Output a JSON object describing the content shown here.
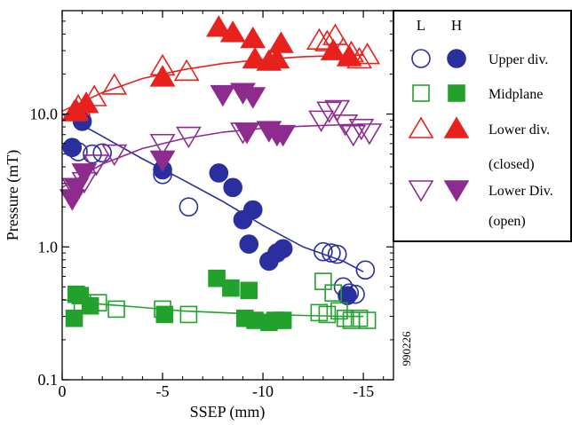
{
  "chart_data": {
    "type": "scatter",
    "xlabel": "SSEP (mm)",
    "ylabel": "Pressure (mT)",
    "xlim": [
      0,
      -16.5
    ],
    "ylim": [
      0.1,
      60
    ],
    "y_scale": "log",
    "x_ticks": [
      0,
      -5,
      -10,
      -15
    ],
    "x_tick_labels": [
      "0",
      "-5",
      "-10",
      "-15"
    ],
    "y_ticks": [
      0.1,
      1.0,
      10.0
    ],
    "y_tick_labels": [
      "0.1",
      "1.0",
      "10.0"
    ],
    "grid": false,
    "legend_position": "top-right",
    "figure_id": "990226",
    "legend": {
      "col_low": "L",
      "col_high": "H",
      "entries": [
        {
          "label": "Upper div.",
          "sublabel": ""
        },
        {
          "label": "Midplane",
          "sublabel": ""
        },
        {
          "label": "Lower div.",
          "sublabel": "(closed)"
        },
        {
          "label": "Lower Div.",
          "sublabel": "(open)"
        }
      ]
    },
    "series": [
      {
        "marker": "circle",
        "color": "#2a2fa0",
        "L": [
          [
            -0.8,
            5.2
          ],
          [
            -1.5,
            5.0
          ],
          [
            -2.0,
            5.1
          ],
          [
            -5.0,
            3.5
          ],
          [
            -6.3,
            2.0
          ],
          [
            -13.0,
            0.92
          ],
          [
            -13.4,
            0.9
          ],
          [
            -13.7,
            0.88
          ],
          [
            -14.0,
            0.5
          ],
          [
            -14.3,
            0.45
          ],
          [
            -14.6,
            0.44
          ],
          [
            -15.1,
            0.67
          ]
        ],
        "H": [
          [
            -0.5,
            5.6
          ],
          [
            -1.0,
            8.8
          ],
          [
            -5.0,
            3.8
          ],
          [
            -7.8,
            3.6
          ],
          [
            -8.5,
            2.8
          ],
          [
            -9.0,
            1.6
          ],
          [
            -9.5,
            1.9
          ],
          [
            -9.3,
            1.05
          ],
          [
            -10.3,
            0.78
          ],
          [
            -10.7,
            0.9
          ],
          [
            -11.0,
            0.97
          ],
          [
            -14.2,
            0.43
          ]
        ],
        "fit": [
          [
            0,
            10
          ],
          [
            -2,
            6.8
          ],
          [
            -4,
            4.6
          ],
          [
            -6,
            3.2
          ],
          [
            -8,
            2.2
          ],
          [
            -10,
            1.45
          ],
          [
            -12,
            1.0
          ],
          [
            -14,
            0.78
          ],
          [
            -15,
            0.65
          ]
        ]
      },
      {
        "marker": "square",
        "color": "#22a12c",
        "L": [
          [
            -1.0,
            0.38
          ],
          [
            -1.8,
            0.38
          ],
          [
            -2.7,
            0.34
          ],
          [
            -5.0,
            0.34
          ],
          [
            -6.3,
            0.31
          ],
          [
            -12.8,
            0.32
          ],
          [
            -13.0,
            0.55
          ],
          [
            -13.2,
            0.31
          ],
          [
            -13.5,
            0.45
          ],
          [
            -13.8,
            0.33
          ],
          [
            -14.1,
            0.29
          ],
          [
            -14.4,
            0.28
          ],
          [
            -14.8,
            0.29
          ],
          [
            -15.2,
            0.28
          ]
        ],
        "H": [
          [
            -0.6,
            0.29
          ],
          [
            -0.7,
            0.44
          ],
          [
            -0.9,
            0.43
          ],
          [
            -1.4,
            0.36
          ],
          [
            -5.1,
            0.31
          ],
          [
            -7.7,
            0.58
          ],
          [
            -8.4,
            0.49
          ],
          [
            -9.1,
            0.29
          ],
          [
            -9.3,
            0.47
          ],
          [
            -9.6,
            0.28
          ],
          [
            -10.3,
            0.27
          ],
          [
            -10.6,
            0.28
          ],
          [
            -11.0,
            0.28
          ]
        ],
        "fit": [
          [
            0,
            0.4
          ],
          [
            -2,
            0.37
          ],
          [
            -4,
            0.35
          ],
          [
            -6,
            0.33
          ],
          [
            -8,
            0.32
          ],
          [
            -10,
            0.31
          ],
          [
            -12,
            0.305
          ],
          [
            -14,
            0.3
          ],
          [
            -15,
            0.3
          ]
        ]
      },
      {
        "marker": "triangle-up",
        "color": "#e8211d",
        "L": [
          [
            -0.6,
            10.4
          ],
          [
            -0.8,
            11.5
          ],
          [
            -1.6,
            13.5
          ],
          [
            -2.6,
            16.5
          ],
          [
            -5.0,
            23.0
          ],
          [
            -6.2,
            21.0
          ],
          [
            -12.8,
            36.0
          ],
          [
            -13.2,
            35.0
          ],
          [
            -13.6,
            39.0
          ],
          [
            -14.0,
            31.0
          ],
          [
            -14.4,
            29.0
          ],
          [
            -14.8,
            26.0
          ],
          [
            -15.2,
            28.0
          ]
        ],
        "H": [
          [
            -0.7,
            10.6
          ],
          [
            -1.2,
            12.0
          ],
          [
            -5.0,
            19.0
          ],
          [
            -7.8,
            45.0
          ],
          [
            -8.5,
            41.0
          ],
          [
            -9.5,
            37.0
          ],
          [
            -9.6,
            26.0
          ],
          [
            -10.3,
            25.0
          ],
          [
            -10.7,
            26.0
          ],
          [
            -10.9,
            34.0
          ],
          [
            -13.5,
            30.0
          ],
          [
            -14.3,
            27.0
          ]
        ],
        "fit": [
          [
            0,
            10.5
          ],
          [
            -2,
            14.5
          ],
          [
            -4,
            18.5
          ],
          [
            -6,
            21.5
          ],
          [
            -8,
            24.0
          ],
          [
            -10,
            25.8
          ],
          [
            -12,
            27.0
          ],
          [
            -14,
            27.6
          ],
          [
            -15,
            27.8
          ]
        ]
      },
      {
        "marker": "triangle-down",
        "color": "#8e2b8e",
        "L": [
          [
            -0.6,
            2.8
          ],
          [
            -1.1,
            3.1
          ],
          [
            -1.7,
            4.2
          ],
          [
            -2.6,
            5.0
          ],
          [
            -5.0,
            6.0
          ],
          [
            -6.3,
            6.8
          ],
          [
            -9.0,
            7.3
          ],
          [
            -12.9,
            9.0
          ],
          [
            -13.3,
            10.5
          ],
          [
            -13.7,
            10.8
          ],
          [
            -14.1,
            8.4
          ],
          [
            -14.5,
            7.0
          ],
          [
            -14.9,
            7.8
          ],
          [
            -15.3,
            7.2
          ]
        ],
        "H": [
          [
            -0.5,
            2.3
          ],
          [
            -0.7,
            2.8
          ],
          [
            -1.1,
            3.6
          ],
          [
            -5.0,
            4.5
          ],
          [
            -8.0,
            14.0
          ],
          [
            -9.0,
            14.5
          ],
          [
            -9.5,
            13.5
          ],
          [
            -9.2,
            7.3
          ],
          [
            -10.3,
            7.5
          ],
          [
            -10.7,
            7.0
          ],
          [
            -11.0,
            7.0
          ]
        ],
        "fit": [
          [
            0,
            2.8
          ],
          [
            -2,
            4.2
          ],
          [
            -4,
            5.5
          ],
          [
            -6,
            6.5
          ],
          [
            -8,
            7.3
          ],
          [
            -10,
            7.8
          ],
          [
            -12,
            8.1
          ],
          [
            -14,
            8.3
          ],
          [
            -15,
            8.35
          ]
        ]
      }
    ]
  }
}
